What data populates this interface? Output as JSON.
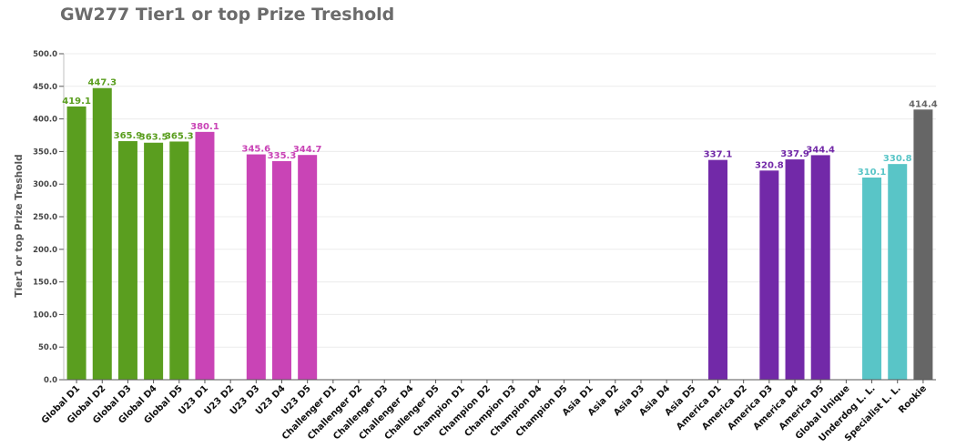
{
  "chart_data": {
    "type": "bar",
    "title": "GW277 Tier1 or top Prize Treshold",
    "xlabel": "",
    "ylabel": "Tier1 or top Prize Treshold",
    "ylim": [
      0,
      500
    ],
    "yticks": [
      0,
      50,
      100,
      150,
      200,
      250,
      300,
      350,
      400,
      450,
      500
    ],
    "ytick_labels": [
      "0.0",
      "50.0",
      "100.0",
      "150.0",
      "200.0",
      "250.0",
      "300.0",
      "350.0",
      "400.0",
      "450.0",
      "500.0"
    ],
    "grid": true,
    "legend": "none",
    "categories": [
      "Global D1",
      "Global D2",
      "Global D3",
      "Global D4",
      "Global D5",
      "U23 D1",
      "U23 D2",
      "U23 D3",
      "U23 D4",
      "U23 D5",
      "Challenger D1",
      "Challenger D2",
      "Challenger D3",
      "Challenger D4",
      "Challenger D5",
      "Champion D1",
      "Champion D2",
      "Champion D3",
      "Champion D4",
      "Champion D5",
      "Asia D1",
      "Asia D2",
      "Asia D3",
      "Asia D4",
      "Asia D5",
      "America D1",
      "America D2",
      "America D3",
      "America D4",
      "America D5",
      "Global Unique",
      "Underdog L. L.",
      "Specialist L. L.",
      "Rookie"
    ],
    "values": [
      419.1,
      447.3,
      365.9,
      363.5,
      365.3,
      380.1,
      null,
      345.6,
      335.3,
      344.7,
      null,
      null,
      null,
      null,
      null,
      null,
      null,
      null,
      null,
      null,
      null,
      null,
      null,
      null,
      null,
      337.1,
      null,
      320.8,
      337.9,
      344.4,
      null,
      310.1,
      330.8,
      414.4
    ],
    "value_labels": [
      "419.1",
      "447.3",
      "365.9",
      "363.5",
      "365.3",
      "380.1",
      "",
      "345.6",
      "335.3",
      "344.7",
      "",
      "",
      "",
      "",
      "",
      "",
      "",
      "",
      "",
      "",
      "",
      "",
      "",
      "",
      "",
      "337.1",
      "",
      "320.8",
      "337.9",
      "344.4",
      "",
      "310.1",
      "330.8",
      "414.4"
    ],
    "colors": [
      "#5a9e1f",
      "#5a9e1f",
      "#5a9e1f",
      "#5a9e1f",
      "#5a9e1f",
      "#c944b6",
      "#c944b6",
      "#c944b6",
      "#c944b6",
      "#c944b6",
      "#c944b6",
      "#c944b6",
      "#c944b6",
      "#c944b6",
      "#c944b6",
      "#c944b6",
      "#c944b6",
      "#c944b6",
      "#c944b6",
      "#c944b6",
      "#7229a8",
      "#7229a8",
      "#7229a8",
      "#7229a8",
      "#7229a8",
      "#7229a8",
      "#7229a8",
      "#7229a8",
      "#7229a8",
      "#7229a8",
      "#7229a8",
      "#59c5c7",
      "#59c5c7",
      "#666666"
    ]
  }
}
